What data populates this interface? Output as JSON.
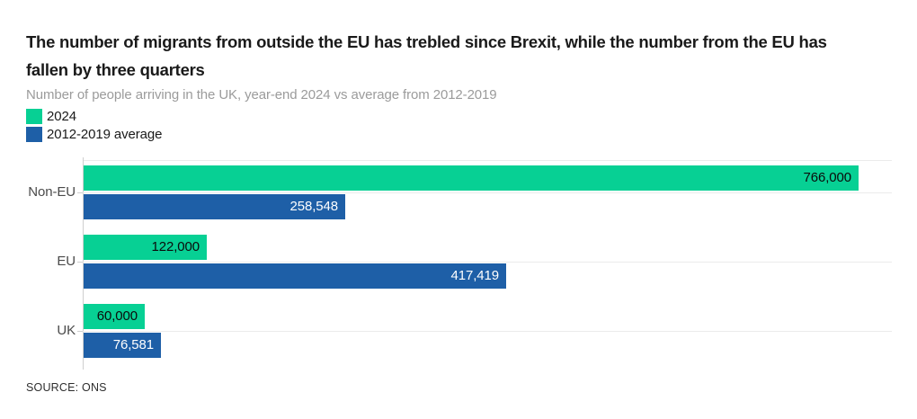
{
  "header": {
    "title_line1": "The number of migrants from outside the EU has trebled since Brexit, while the number from the EU has",
    "title_line2": "fallen by three quarters",
    "subtitle": "Number of people arriving in the UK, year-end 2024 vs average from 2012-2019"
  },
  "legend": {
    "items": [
      {
        "label": "2024",
        "color": "#07d094"
      },
      {
        "label": "2012-2019 average",
        "color": "#1e5fa7"
      }
    ]
  },
  "chart_data": {
    "type": "bar",
    "orientation": "horizontal",
    "title": "The number of migrants from outside the EU has trebled since Brexit, while the number from the EU has fallen by three quarters",
    "subtitle": "Number of people arriving in the UK, year-end 2024 vs average from 2012-2019",
    "categories": [
      "Non-EU",
      "EU",
      "UK"
    ],
    "series": [
      {
        "name": "2024",
        "color": "#07d094",
        "values": [
          766000,
          122000,
          60000
        ],
        "value_labels": [
          "766,000",
          "122,000",
          "60,000"
        ],
        "value_label_color": "#0b0b0b"
      },
      {
        "name": "2012-2019 average",
        "color": "#1e5fa7",
        "values": [
          258548,
          417419,
          76581
        ],
        "value_labels": [
          "258,548",
          "417,419",
          "76,581"
        ],
        "value_label_color": "#ffffff"
      }
    ],
    "xlim": [
      0,
      800000
    ],
    "grid": "horizontal category lines",
    "legend_position": "top-left"
  },
  "footer": {
    "source": "SOURCE: ONS"
  },
  "colors": {
    "green": "#07d094",
    "blue": "#1e5fa7",
    "gridline": "#ebebeb",
    "axis_line": "#cfcfcf",
    "title_text": "#1a1a1a",
    "subtitle_text": "#9b9b9b",
    "category_label_text": "#4a4a4a",
    "source_text": "#2e2e2e"
  }
}
